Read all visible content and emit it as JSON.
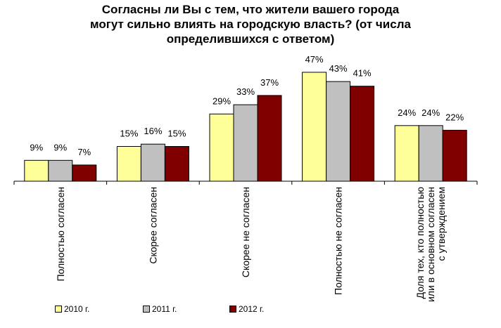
{
  "title_lines": [
    "Согласны ли Вы с тем, что жители вашего города",
    "могут сильно влиять на городскую власть? (от числа",
    "определившихся с ответом)"
  ],
  "chart_data": {
    "type": "bar",
    "title": "Согласны ли Вы с тем, что жители вашего города могут сильно влиять на городскую власть? (от числа определившихся с ответом)",
    "categories": [
      [
        "Полностью согласен"
      ],
      [
        "Скорее согласен"
      ],
      [
        "Скорее не согласен"
      ],
      [
        "Полностью не согласен"
      ],
      [
        "Доля тех, кто полностью",
        "или в основном согласен",
        "с утверждением"
      ]
    ],
    "series": [
      {
        "name": "2010 г.",
        "color": "#ffff99",
        "values": [
          9,
          15,
          29,
          47,
          24
        ],
        "labels": [
          "9%",
          "15%",
          "29%",
          "47%",
          "24%"
        ]
      },
      {
        "name": "2011 г.",
        "color": "#c0c0c0",
        "values": [
          9,
          16,
          33,
          43,
          24
        ],
        "labels": [
          "9%",
          "16%",
          "33%",
          "43%",
          "24%"
        ]
      },
      {
        "name": "2012 г.",
        "color": "#800000",
        "values": [
          7,
          15,
          37,
          41,
          22
        ],
        "labels": [
          "7%",
          "15%",
          "37%",
          "41%",
          "22%"
        ]
      }
    ],
    "ylim": [
      0,
      50
    ],
    "grid": false,
    "legend_position": "bottom",
    "data_labels": true
  }
}
